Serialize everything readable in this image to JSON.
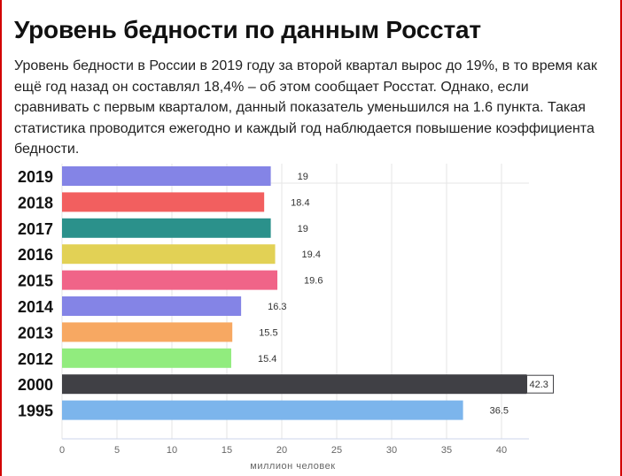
{
  "title": "Уровень бедности по данным Росстат",
  "description": "Уровень бедности в России в 2019 году за второй квартал вырос до 19%, в то время как ещё год назад он составлял 18,4% – об этом сообщает Росстат. Однако, если сравнивать с первым кварталом, данный показатель уменьшился на 1.6 пункта. Такая статистика проводится ежегодно и каждый год наблюдается повышение коэффициента бедности.",
  "colors": {
    "frame": "#d20000"
  },
  "chart_data": {
    "type": "bar",
    "orientation": "horizontal",
    "categories": [
      "2019",
      "2018",
      "2017",
      "2016",
      "2015",
      "2014",
      "2013",
      "2012",
      "2000",
      "1995"
    ],
    "values": [
      19,
      18.4,
      19,
      19.4,
      19.6,
      16.3,
      15.5,
      15.4,
      42.3,
      36.5
    ],
    "value_labels": [
      "19",
      "18.4",
      "19",
      "19.4",
      "19.6",
      "16.3",
      "15.5",
      "15.4",
      "42.3",
      "36.5"
    ],
    "bar_colors": [
      "#8484e6",
      "#f25f5f",
      "#2b918b",
      "#e2d155",
      "#f06488",
      "#8484e6",
      "#f7a862",
      "#91ec7e",
      "#404045",
      "#7cb5ec"
    ],
    "xticks": [
      "0",
      "5",
      "10",
      "15",
      "20",
      "25",
      "30",
      "35",
      "40"
    ],
    "xlim": [
      0,
      42
    ],
    "xlabel": "миллион человек",
    "ylabel": "",
    "grid": true
  }
}
